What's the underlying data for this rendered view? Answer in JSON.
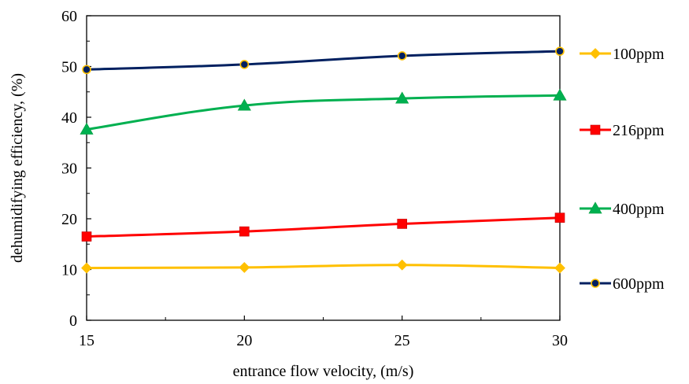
{
  "chart_data": {
    "type": "line",
    "title": "",
    "xlabel": "entrance flow velocity, (m/s)",
    "ylabel": "dehumidifying efficiency, (%)",
    "x": [
      15,
      20,
      25,
      30
    ],
    "xlim": [
      15,
      30
    ],
    "ylim": [
      0,
      60
    ],
    "xticks": [
      15,
      20,
      25,
      30
    ],
    "yticks": [
      0,
      10,
      20,
      30,
      40,
      50,
      60
    ],
    "grid": false,
    "legend_position": "right",
    "series": [
      {
        "name": "100ppm",
        "values": [
          10.3,
          10.4,
          10.9,
          10.3
        ],
        "color": "#FFC000",
        "marker": "diamond",
        "marker_fill": "#FFC000"
      },
      {
        "name": "216ppm",
        "values": [
          16.5,
          17.5,
          19.0,
          20.2
        ],
        "color": "#FF0000",
        "marker": "square",
        "marker_fill": "#FF0000"
      },
      {
        "name": "400ppm",
        "values": [
          37.6,
          42.3,
          43.7,
          44.3
        ],
        "color": "#00B050",
        "marker": "triangle",
        "marker_fill": "#00B050"
      },
      {
        "name": "600ppm",
        "values": [
          49.4,
          50.4,
          52.1,
          53.0
        ],
        "color": "#002060",
        "marker": "circle",
        "marker_fill": "#002060",
        "marker_stroke": "#FFC000"
      }
    ]
  }
}
